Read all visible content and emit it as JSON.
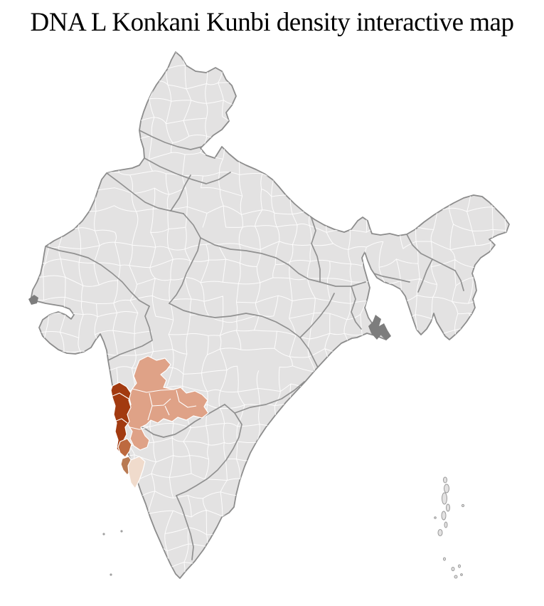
{
  "page": {
    "background": "#ffffff"
  },
  "title": "DNA L Konkani Kunbi density interactive map",
  "map": {
    "label": "India district-level density choropleth",
    "colors": {
      "sea": "#ffffff",
      "land": "#e3e2e2",
      "district_border": "#ffffff",
      "state_border": "#8c8c8c",
      "coast_border": "#8c8c8c",
      "island_border": "#9a9a9a",
      "density_highest": "#a23a10",
      "density_high": "#bd6a3f",
      "density_medium": "#b97a52",
      "density_low": "#dfa287",
      "density_lowest": "#f0dbcc",
      "other_dark_region": "#7d7d7d"
    }
  }
}
